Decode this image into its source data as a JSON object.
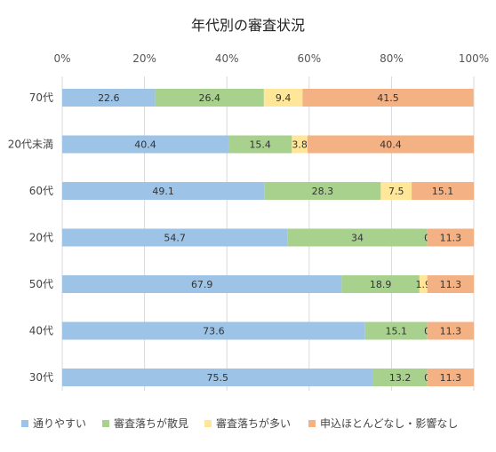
{
  "chart_data": {
    "type": "bar",
    "orientation": "horizontal",
    "stacked": "percent",
    "title": "年代別の審査状況",
    "x_ticks": [
      "0%",
      "20%",
      "40%",
      "60%",
      "80%",
      "100%"
    ],
    "xlim": [
      0,
      100
    ],
    "grid": true,
    "legend_position": "bottom",
    "categories": [
      "70代",
      "20代未満",
      "60代",
      "20代",
      "50代",
      "40代",
      "30代"
    ],
    "series": [
      {
        "name": "通りやすい",
        "color": "#9DC3E6",
        "values": [
          22.6,
          40.4,
          49.1,
          54.7,
          67.9,
          73.6,
          75.5
        ],
        "labels": [
          "22.6",
          "40.4",
          "49.1",
          "54.7",
          "67.9",
          "73.6",
          "75.5"
        ]
      },
      {
        "name": "審査落ちが散見",
        "color": "#A9D18E",
        "values": [
          26.4,
          15.4,
          28.3,
          34,
          18.9,
          15.1,
          13.2
        ],
        "labels": [
          "26.4",
          "15.4",
          "28.3",
          "34",
          "18.9",
          "15.1",
          "13.2"
        ]
      },
      {
        "name": "審査落ちが多い",
        "color": "#FFE699",
        "values": [
          9.4,
          3.8,
          7.5,
          0,
          1.9,
          0,
          0
        ],
        "labels": [
          "9.4",
          "3.8",
          "7.5",
          "0",
          "1.9",
          "0",
          "0"
        ]
      },
      {
        "name": "申込ほとんどなし・影響なし",
        "color": "#F4B183",
        "values": [
          41.5,
          40.4,
          15.1,
          11.3,
          11.3,
          11.3,
          11.3
        ],
        "labels": [
          "41.5",
          "40.4",
          "15.1",
          "11.3",
          "11.3",
          "11.3",
          "11.3"
        ]
      }
    ]
  }
}
